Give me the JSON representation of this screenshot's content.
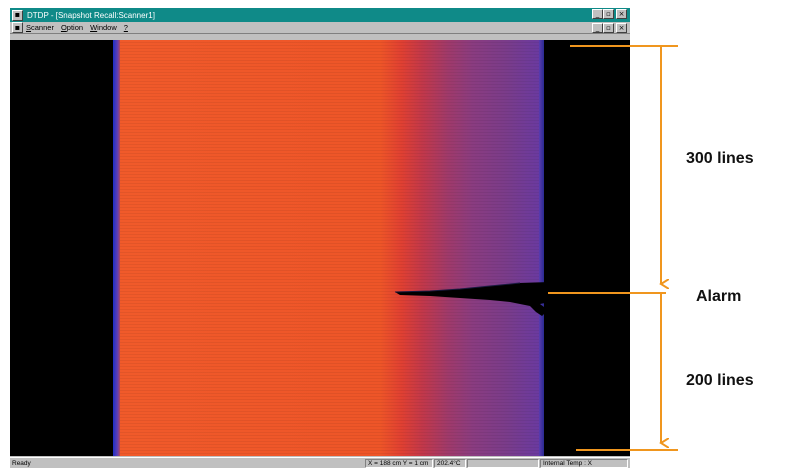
{
  "window": {
    "title": "DTDP - [Snapshot Recall:Scanner1]",
    "system_icon_glyph": "▪",
    "controls": {
      "minimize_glyph": "_",
      "restore_glyph": "▫",
      "close_glyph": "×"
    }
  },
  "menu": {
    "items": [
      {
        "underlined": "S",
        "rest": "canner"
      },
      {
        "underlined": "O",
        "rest": "ption"
      },
      {
        "underlined": "W",
        "rest": "indow"
      },
      {
        "underlined": "?",
        "rest": ""
      }
    ]
  },
  "status_bar": {
    "ready": "Ready",
    "position": "X = 188 cm  Y = 1 cm",
    "temperature": "202.4°C",
    "internal_temp": "Internal Temp : X"
  },
  "annotations": {
    "upper_span_label": "300 lines",
    "alarm_label": "Alarm",
    "lower_span_label": "200 lines",
    "accent_color": "#f0961e"
  },
  "colors": {
    "title_bar": "#0f8a88",
    "hot_band": "#f05a2a",
    "cool_band": "#6a3aa0",
    "background": "#000000"
  }
}
